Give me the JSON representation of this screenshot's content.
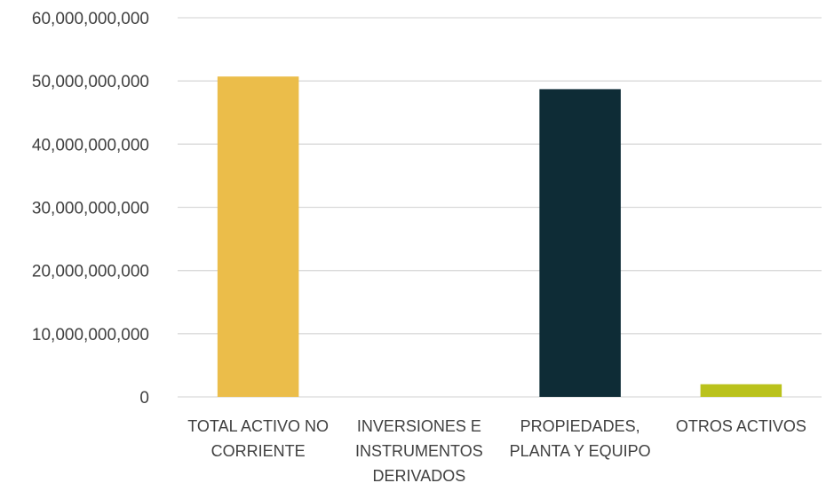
{
  "chart_data": {
    "type": "bar",
    "categories": [
      [
        "TOTAL ACTIVO NO",
        "CORRIENTE"
      ],
      [
        "INVERSIONES E",
        "INSTRUMENTOS",
        "DERIVADOS"
      ],
      [
        "PROPIEDADES,",
        "PLANTA Y EQUIPO"
      ],
      [
        "OTROS ACTIVOS"
      ]
    ],
    "values": [
      50700000000,
      0,
      48700000000,
      2000000000
    ],
    "bar_colors": [
      "#EBBD4A",
      "#7F7F7F",
      "#0E2C36",
      "#BAC21C"
    ],
    "ylim": [
      0,
      60000000000
    ],
    "yticks": [
      0,
      10000000000,
      20000000000,
      30000000000,
      40000000000,
      50000000000,
      60000000000
    ],
    "ytick_labels": [
      "0",
      "10,000,000,000",
      "20,000,000,000",
      "30,000,000,000",
      "40,000,000,000",
      "50,000,000,000",
      "60,000,000,000"
    ],
    "grid": true,
    "gridline_color": "#D9D9D9",
    "title": "",
    "xlabel": "",
    "ylabel": ""
  }
}
